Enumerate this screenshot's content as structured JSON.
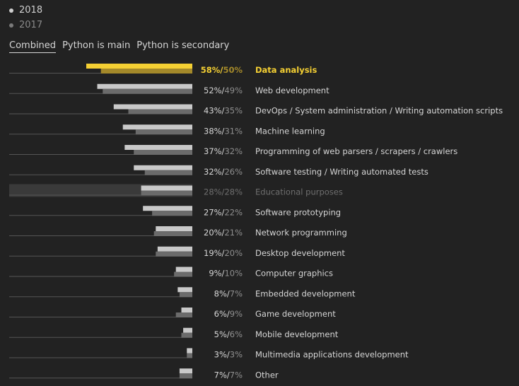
{
  "legend": {
    "year_2018": "2018",
    "year_2017": "2017"
  },
  "tabs": [
    "Combined",
    "Python is main",
    "Python is secondary"
  ],
  "active_tab": 0,
  "colors": {
    "bar_2018": "#c9c9c9",
    "bar_2017": "#6b6b6b",
    "highlight_2018": "#f5d033",
    "highlight_2017": "#a4892a",
    "highlight_text": "#f5d033",
    "baseline": "#555555",
    "dimmed_row_bg": "#3a3a3a",
    "dimmed_text": "#6e6e6e"
  },
  "chart_data": {
    "type": "bar",
    "orientation": "horizontal",
    "series": [
      {
        "name": "2018",
        "values": [
          58,
          52,
          43,
          38,
          37,
          32,
          28,
          27,
          20,
          19,
          9,
          8,
          6,
          5,
          3,
          7
        ]
      },
      {
        "name": "2017",
        "values": [
          50,
          49,
          35,
          31,
          32,
          26,
          28,
          22,
          21,
          20,
          10,
          7,
          9,
          6,
          3,
          7
        ]
      }
    ],
    "categories": [
      "Data analysis",
      "Web development",
      "DevOps / System administration / Writing automation scripts",
      "Machine learning",
      "Programming of web parsers / scrapers / crawlers",
      "Software testing / Writing automated tests",
      "Educational purposes",
      "Software prototyping",
      "Network programming",
      "Desktop development",
      "Computer graphics",
      "Embedded development",
      "Game development",
      "Mobile development",
      "Multimedia applications development",
      "Other"
    ],
    "value_labels_2018": [
      "58%",
      "52%",
      "43%",
      "38%",
      "37%",
      "32%",
      "28%",
      "27%",
      "20%",
      "19%",
      "9%",
      "8%",
      "6%",
      "5%",
      "3%",
      "7%"
    ],
    "value_labels_2017": [
      "50%",
      "49%",
      "35%",
      "31%",
      "32%",
      "26%",
      "28%",
      "22%",
      "21%",
      "20%",
      "10%",
      "7%",
      "9%",
      "6%",
      "3%",
      "7%"
    ],
    "highlighted_category": "Data analysis",
    "dimmed_category": "Educational purposes",
    "xlim": [
      0,
      58
    ]
  }
}
